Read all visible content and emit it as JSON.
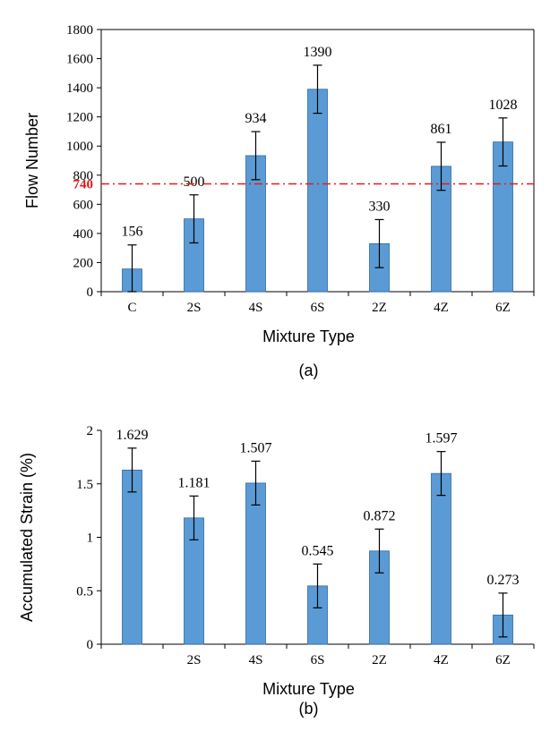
{
  "chart_data": [
    {
      "type": "bar",
      "panel_label": "(a)",
      "xlabel": "Mixture Type",
      "ylabel": "Flow Number",
      "ylim": [
        0,
        1800
      ],
      "yticks": [
        0,
        200,
        400,
        600,
        800,
        1000,
        1200,
        1400,
        1600,
        1800
      ],
      "categories": [
        "C",
        "2S",
        "4S",
        "6S",
        "2Z",
        "4Z",
        "6Z"
      ],
      "values": [
        156,
        500,
        934,
        1390,
        330,
        861,
        1028
      ],
      "error": [
        165,
        165,
        165,
        165,
        165,
        165,
        165
      ],
      "data_labels": [
        "156",
        "500",
        "934",
        "1390",
        "330",
        "861",
        "1028"
      ],
      "reference_line": {
        "value": 740,
        "label": "740",
        "color": "#e31a1c"
      },
      "bar_color": "#5b9bd5",
      "grid": false
    },
    {
      "type": "bar",
      "panel_label": "(b)",
      "xlabel": "Mixture Type",
      "ylabel": "Accumulated Strain (%)",
      "ylim": [
        0,
        2
      ],
      "yticks": [
        0,
        0.5,
        1,
        1.5,
        2
      ],
      "ytick_labels": [
        "0",
        "0.5",
        "1",
        "1.5",
        "2"
      ],
      "categories": [
        "",
        "2S",
        "4S",
        "6S",
        "2Z",
        "4Z",
        "6Z"
      ],
      "values": [
        1.629,
        1.181,
        1.507,
        0.545,
        0.872,
        1.597,
        0.273
      ],
      "error": [
        0.205,
        0.205,
        0.205,
        0.205,
        0.205,
        0.205,
        0.205
      ],
      "data_labels": [
        "1.629",
        "1.181",
        "1.507",
        "0.545",
        "0.872",
        "1.597",
        "0.273"
      ],
      "bar_color": "#5b9bd5",
      "grid": false
    }
  ]
}
